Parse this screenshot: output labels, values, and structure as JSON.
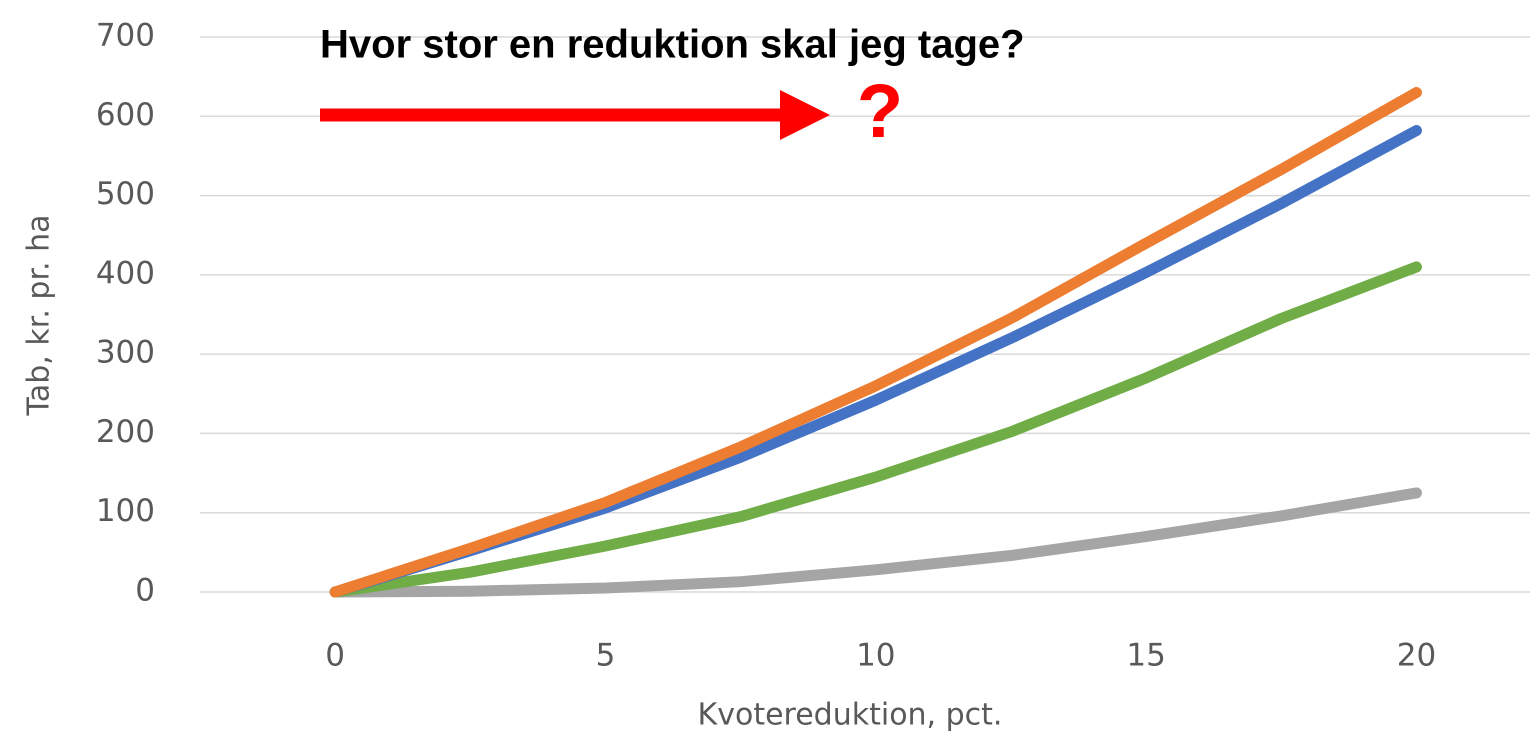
{
  "chart_data": {
    "type": "line",
    "annotations": [
      "Hvor stor en reduktion skal jeg tage?",
      "?"
    ],
    "x_label": "Kvotereduktion,  pct.",
    "y_label": "Tab, kr. pr. ha",
    "x": [
      0,
      2.5,
      5,
      7.5,
      10,
      12.5,
      15,
      17.5,
      20
    ],
    "series": [
      {
        "color": "#a5a5a5",
        "values": [
          0,
          1,
          5,
          13,
          28,
          46,
          70,
          96,
          125
        ]
      },
      {
        "color": "#70ad47",
        "values": [
          0,
          25,
          58,
          95,
          145,
          202,
          270,
          345,
          410
        ]
      },
      {
        "color": "#4472c4",
        "values": [
          0,
          52,
          106,
          170,
          242,
          320,
          403,
          490,
          582
        ]
      },
      {
        "color": "#ed7d31",
        "values": [
          0,
          55,
          113,
          183,
          260,
          345,
          440,
          533,
          630
        ]
      }
    ],
    "xlim": [
      -2.5,
      22.1
    ],
    "xticks": [
      0,
      5,
      10,
      15,
      20
    ],
    "ylim": [
      0,
      700
    ],
    "yticks": [
      0,
      100,
      200,
      300,
      400,
      500,
      600,
      700
    ],
    "grid": true
  }
}
